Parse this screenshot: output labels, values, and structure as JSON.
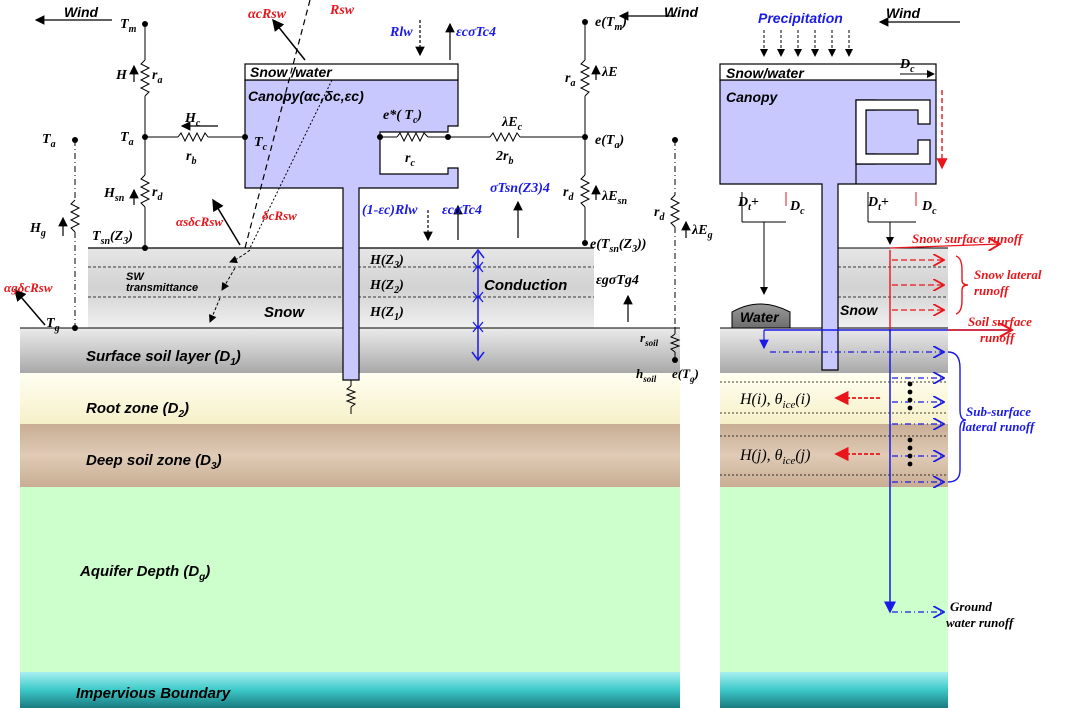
{
  "layers": {
    "surface_soil": "Surface soil layer (D",
    "surface_soil_sub": "1",
    "root_zone": "Root zone (D",
    "root_zone_sub": "2",
    "deep_soil": "Deep soil zone (D",
    "deep_soil_sub": "3",
    "aquifer": "Aquifer Depth (D",
    "aquifer_sub": "g",
    "impervious": "Impervious Boundary",
    "snow": "Snow",
    "water": "Water"
  },
  "canopy": {
    "snow_water_left": "Snow /water",
    "snow_water_right": "Snow/water",
    "canopy_left": "Canopy(",
    "canopy_params": "αc,δc,εc)",
    "canopy_right": "Canopy"
  },
  "left_panel": {
    "wind": "Wind",
    "Tm": "T",
    "Tm_sub": "m",
    "H": "H",
    "ra": "r",
    "ra_sub": "a",
    "Hc": "H",
    "Hc_sub": "c",
    "Ta": "T",
    "Ta_sub": "a",
    "Ta2": "T",
    "Ta2_sub": "a",
    "rb": "r",
    "rb_sub": "b",
    "Tc": "T",
    "Tc_sub": "c",
    "Hsn": "H",
    "Hsn_sub": "sn",
    "rd": "r",
    "rd_sub": "d",
    "Hg": "H",
    "Hg_sub": "g",
    "Tsn": "T",
    "Tsn_sub": "sn",
    "Tsn_arg": "(Z",
    "Tsn_arg_sub": "3",
    "Tsn_close": ")",
    "Tg": "T",
    "Tg_sub": "g",
    "sw": "SW",
    "transmittance": "transmittance",
    "ag_rsw": "αgδcRsw",
    "as_rsw": "αsδcRsw",
    "dc_rsw": "δcRsw",
    "ac_rsw": "αcRsw",
    "rsw": "Rsw",
    "rlw": "Rlw",
    "ec_tc4": "εcσTc4",
    "epc": "e*( T",
    "epc_sub": "c",
    "epc_close": ")",
    "rc": "r",
    "rc_sub": "c",
    "lec": "λE",
    "lec_sub": "c",
    "two_rb": "2r",
    "two_rb_sub": "b",
    "sig_tsn": "σTsn(Z3)4",
    "one_minus": "(1-εc)Rlw",
    "ec_tc4_b": "εcσTc4",
    "hz3": "H(Z",
    "hz3_sub": "3",
    "hz2": "H(Z",
    "hz2_sub": "2",
    "hz1": "H(Z",
    "hz1_sub": "1",
    "close_paren": ")",
    "conduction": "Conduction",
    "eg_tg4": "εgσTg4",
    "eTm": "e(T",
    "eTm_sub": "m",
    "eTa": "e(T",
    "eTa_sub": "a",
    "eTsn": "e(T",
    "eTsn_sub": "sn",
    "eTsn_mid": "(Z",
    "eTsn_mid_sub": "3",
    "eTsn_close": "))",
    "lE": "λE",
    "lEsn": "λE",
    "lEsn_sub": "sn",
    "lEg": "λE",
    "lEg_sub": "g",
    "rsoil": "r",
    "rsoil_sub": "soil",
    "hsoil": "h",
    "hsoil_sub": "soil",
    "eTg": "e(T",
    "eTg_sub": "g",
    "eTg_close": ")"
  },
  "right_panel": {
    "precip": "Precipitation",
    "wind": "Wind",
    "dc": "D",
    "dc_sub": "c",
    "dt_plus": "D",
    "dt_sub": "t",
    "plus": "+",
    "snow_surface_runoff": "Snow surface runoff",
    "snow_lateral_1": "Snow lateral",
    "snow_lateral_2": "runoff",
    "soil_surface_1": "Soil surface",
    "soil_surface_2": "runoff",
    "subsurface_1": "Sub-surface",
    "subsurface_2": "lateral runoff",
    "groundwater_1": "Ground",
    "groundwater_2": "water runoff",
    "hi": "H(i), θ",
    "hi_sub": "ice",
    "hi_close": "(i)",
    "hj": "H(j), θ",
    "hj_sub": "ice",
    "hj_close": "(j)"
  },
  "colors": {
    "canopy": "#c8c8ff",
    "red": "#e8161b",
    "blue": "#1a1ae6",
    "aquifer": "#ccffcc",
    "root": "#fffadc",
    "deep": "#d2b9a0",
    "surface": "#c8c8c8",
    "impervious": "#3cc8c8"
  }
}
